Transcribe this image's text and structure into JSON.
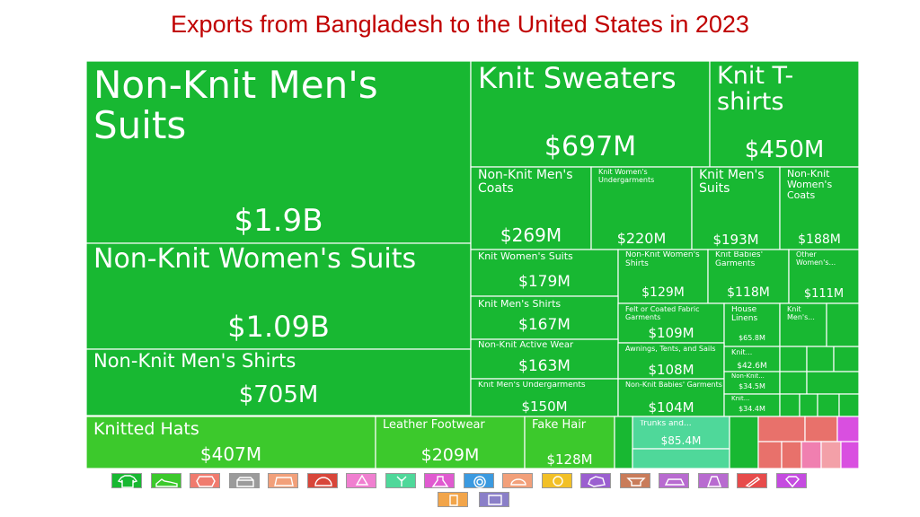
{
  "title": "Exports from Bangladesh to the United States in 2023",
  "chart_data": {
    "type": "treemap",
    "items": [
      {
        "label": "Non-Knit Men's Suits",
        "value_text": "$1.9B",
        "value_musd": 1900,
        "color": "#18b832"
      },
      {
        "label": "Non-Knit Women's Suits",
        "value_text": "$1.09B",
        "value_musd": 1090,
        "color": "#18b832"
      },
      {
        "label": "Non-Knit Men's Shirts",
        "value_text": "$705M",
        "value_musd": 705,
        "color": "#18b832"
      },
      {
        "label": "Knit Sweaters",
        "value_text": "$697M",
        "value_musd": 697,
        "color": "#18b832"
      },
      {
        "label": "Knit T-shirts",
        "value_text": "$450M",
        "value_musd": 450,
        "color": "#18b832"
      },
      {
        "label": "Non-Knit Men's Coats",
        "value_text": "$269M",
        "value_musd": 269,
        "color": "#18b832"
      },
      {
        "label": "Knit Women's Undergarments",
        "value_text": "$220M",
        "value_musd": 220,
        "color": "#18b832"
      },
      {
        "label": "Knit Men's Suits",
        "value_text": "$193M",
        "value_musd": 193,
        "color": "#18b832"
      },
      {
        "label": "Non-Knit Women's Coats",
        "value_text": "$188M",
        "value_musd": 188,
        "color": "#18b832"
      },
      {
        "label": "Knit Women's Suits",
        "value_text": "$179M",
        "value_musd": 179,
        "color": "#18b832"
      },
      {
        "label": "Non-Knit Women's Shirts",
        "value_text": "$129M",
        "value_musd": 129,
        "color": "#18b832"
      },
      {
        "label": "Knit Babies' Garments",
        "value_text": "$118M",
        "value_musd": 118,
        "color": "#18b832"
      },
      {
        "label": "Other Women's...",
        "value_text": "$111M",
        "value_musd": 111,
        "color": "#18b832"
      },
      {
        "label": "Knit Men's Shirts",
        "value_text": "$167M",
        "value_musd": 167,
        "color": "#18b832"
      },
      {
        "label": "Felt or Coated Fabric Garments",
        "value_text": "$109M",
        "value_musd": 109,
        "color": "#18b832"
      },
      {
        "label": "House Linens",
        "value_text": "$65.8M",
        "value_musd": 65.8,
        "color": "#18b832"
      },
      {
        "label": "Knit Men's...",
        "value_text": "",
        "value_musd": null,
        "color": "#18b832"
      },
      {
        "label": "Non-Knit Active Wear",
        "value_text": "$163M",
        "value_musd": 163,
        "color": "#18b832"
      },
      {
        "label": "Awnings, Tents, and Sails",
        "value_text": "$108M",
        "value_musd": 108,
        "color": "#18b832"
      },
      {
        "label": "Knit...",
        "value_text": "$42.6M",
        "value_musd": 42.6,
        "color": "#18b832"
      },
      {
        "label": "Knit Men's Undergarments",
        "value_text": "$150M",
        "value_musd": 150,
        "color": "#18b832"
      },
      {
        "label": "Non-Knit Babies' Garments",
        "value_text": "$104M",
        "value_musd": 104,
        "color": "#18b832"
      },
      {
        "label": "Non-Knit...",
        "value_text": "$34.5M",
        "value_musd": 34.5,
        "color": "#18b832"
      },
      {
        "label": "Knit...",
        "value_text": "$34.4M",
        "value_musd": 34.4,
        "color": "#18b832"
      },
      {
        "label": "Knitted Hats",
        "value_text": "$407M",
        "value_musd": 407,
        "color": "#3cc92c"
      },
      {
        "label": "Leather Footwear",
        "value_text": "$209M",
        "value_musd": 209,
        "color": "#3cc92c"
      },
      {
        "label": "Fake Hair",
        "value_text": "$128M",
        "value_musd": 128,
        "color": "#3cc92c"
      },
      {
        "label": "Trunks and...",
        "value_text": "$85.4M",
        "value_musd": 85.4,
        "color": "#4fd89a"
      }
    ],
    "minor_colors": [
      "#18b832",
      "#4fd89a",
      "#e8716b",
      "#f07fb0",
      "#d94fe0",
      "#9b5fd0",
      "#f3a0a8"
    ],
    "legend": [
      {
        "name": "shirt-icon",
        "color": "#18b832"
      },
      {
        "name": "shoe-icon",
        "color": "#3cc92c"
      },
      {
        "name": "hide-icon",
        "color": "#f07b6e"
      },
      {
        "name": "box-icon",
        "color": "#9b9b9b"
      },
      {
        "name": "leather-icon",
        "color": "#f2a07a"
      },
      {
        "name": "gauge-icon",
        "color": "#d8463a"
      },
      {
        "name": "recycle-icon",
        "color": "#f07fd0"
      },
      {
        "name": "plant-icon",
        "color": "#4fd89a"
      },
      {
        "name": "flask-icon",
        "color": "#e05ad0"
      },
      {
        "name": "gear-icon",
        "color": "#3b9ae0"
      },
      {
        "name": "food-icon",
        "color": "#f2a07a"
      },
      {
        "name": "sun-icon",
        "color": "#f2c027"
      },
      {
        "name": "stone-icon",
        "color": "#9b5fd0"
      },
      {
        "name": "anvil-icon",
        "color": "#c97c5a"
      },
      {
        "name": "car-icon",
        "color": "#b86bd0"
      },
      {
        "name": "road-icon",
        "color": "#b86bd0"
      },
      {
        "name": "instrument-icon",
        "color": "#e74b4b"
      },
      {
        "name": "gem-icon",
        "color": "#c54be0"
      },
      {
        "name": "paint-icon",
        "color": "#f2a54a"
      },
      {
        "name": "bus-icon",
        "color": "#8a7fc8"
      }
    ]
  }
}
